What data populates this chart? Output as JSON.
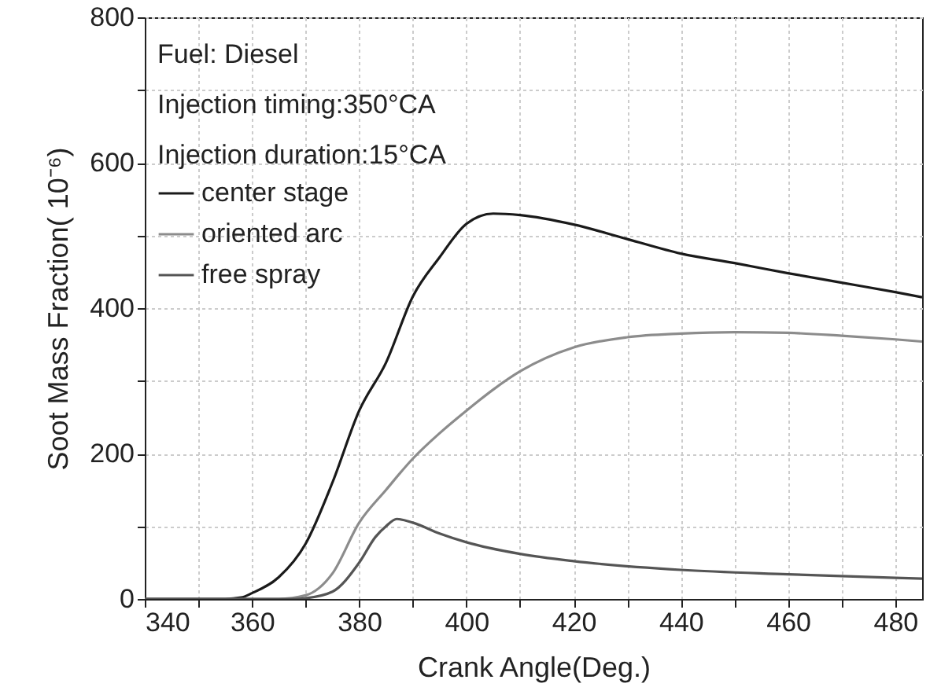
{
  "chart_data": {
    "type": "line",
    "xlabel": "Crank Angle(Deg.)",
    "ylabel": "Soot Mass Fraction( 10⁻⁶)",
    "annotations": [
      "Fuel: Diesel",
      "Injection timing:350°CA",
      "Injection duration:15°CA"
    ],
    "xlim": [
      340,
      485
    ],
    "ylim": [
      0,
      800
    ],
    "xticks": [
      340,
      {
        "value": 350,
        "label": null
      },
      360,
      {
        "value": 370,
        "label": null
      },
      380,
      {
        "value": 390,
        "label": null
      },
      400,
      {
        "value": 410,
        "label": null
      },
      420,
      {
        "value": 430,
        "label": null
      },
      440,
      {
        "value": 450,
        "label": null
      },
      460,
      {
        "value": 470,
        "label": null
      },
      480
    ],
    "yticks": [
      0,
      {
        "value": 100,
        "label": null
      },
      200,
      {
        "value": 300,
        "label": null
      },
      400,
      {
        "value": 500,
        "label": null
      },
      600,
      {
        "value": 700,
        "label": null
      },
      800
    ],
    "grid": true,
    "legend": "top left",
    "line_style": "solid",
    "marker": "none",
    "x": [
      340,
      355,
      358,
      360,
      365,
      370,
      375,
      380,
      385,
      390,
      395,
      400,
      405,
      410,
      420,
      430,
      440,
      450,
      460,
      470,
      480,
      485
    ],
    "series": [
      {
        "name": "center stage",
        "color": "#1a1a1a",
        "values": [
          0,
          0,
          2,
          8,
          30,
          76,
          160,
          259,
          325,
          416,
          470,
          516,
          530,
          528,
          515,
          495,
          475,
          462,
          448,
          435,
          422,
          415
        ]
      },
      {
        "name": "oriented arc",
        "color": "#8c8c8c",
        "values": [
          0,
          0,
          0,
          0,
          0,
          5,
          35,
          105,
          150,
          193,
          228,
          259,
          288,
          313,
          346,
          360,
          365,
          367,
          366,
          362,
          357,
          354
        ]
      },
      {
        "name": "free spray",
        "color": "#555555",
        "x": [
          340,
          368,
          370,
          375,
          380,
          383,
          385,
          387,
          390,
          395,
          400,
          410,
          420,
          440,
          460,
          480,
          485
        ],
        "values": [
          0,
          0,
          1,
          10,
          50,
          85,
          100,
          110,
          105,
          90,
          78,
          62,
          52,
          40,
          34,
          29,
          28
        ]
      }
    ]
  }
}
